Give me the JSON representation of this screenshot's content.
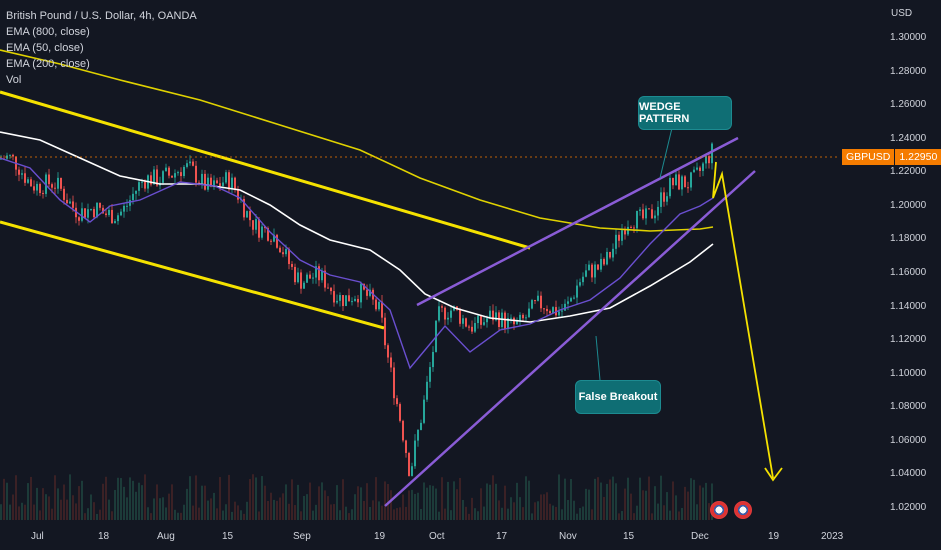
{
  "legend": {
    "title": "British Pound / U.S. Dollar, 4h, OANDA",
    "ema800": "EMA (800, close)",
    "ema50": "EMA (50, close)",
    "ema200": "EMA (200, close)",
    "vol": "Vol"
  },
  "currency": "USD",
  "price_tag": {
    "symbol": "GBPUSD",
    "value": "1.22950"
  },
  "callouts": {
    "wedge": "WEDGE PATTERN",
    "breakout": "False Breakout"
  },
  "colors": {
    "background": "#131722",
    "channel": "#f5e200",
    "wedge": "#8a5cd6",
    "ema800": "#e0d200",
    "ema200": "#ffffff",
    "ema50": "#6a4fd0",
    "up_candle": "#26a69a",
    "down_candle": "#ef5350",
    "arrow": "#f5e200",
    "price_tag": "#f57c00"
  },
  "chart_data": {
    "type": "candlestick",
    "title": "British Pound / U.S. Dollar, 4h, OANDA",
    "ylabel": "USD",
    "ylim": [
      1.005,
      1.315
    ],
    "y_ticks": [
      "1.30000",
      "1.28000",
      "1.26000",
      "1.24000",
      "1.22000",
      "1.20000",
      "1.18000",
      "1.16000",
      "1.14000",
      "1.12000",
      "1.10000",
      "1.08000",
      "1.06000",
      "1.04000",
      "1.02000"
    ],
    "x_ticks": [
      "Jul",
      "18",
      "Aug",
      "15",
      "Sep",
      "19",
      "Oct",
      "17",
      "Nov",
      "15",
      "Dec",
      "19",
      "2023"
    ],
    "last_price": 1.2295,
    "price_path": [
      {
        "x": "Jul",
        "y": 1.228
      },
      {
        "x": "18",
        "y": 1.192
      },
      {
        "x": "Aug",
        "y": 1.222
      },
      {
        "x": "15",
        "y": 1.212
      },
      {
        "x": "Sep",
        "y": 1.158
      },
      {
        "x": "19",
        "y": 1.14
      },
      {
        "x": "Sep 26",
        "y": 1.037
      },
      {
        "x": "Oct",
        "y": 1.135
      },
      {
        "x": "17",
        "y": 1.13
      },
      {
        "x": "Nov",
        "y": 1.143
      },
      {
        "x": "15",
        "y": 1.188
      },
      {
        "x": "Dec",
        "y": 1.229
      }
    ],
    "series": [
      {
        "name": "EMA (800, close)",
        "values": [
          {
            "x": "Jul",
            "y": 1.278
          },
          {
            "x": "Aug",
            "y": 1.262
          },
          {
            "x": "Sep",
            "y": 1.232
          },
          {
            "x": "Oct",
            "y": 1.208
          },
          {
            "x": "Nov",
            "y": 1.19
          },
          {
            "x": "15",
            "y": 1.184
          },
          {
            "x": "Dec",
            "y": 1.186
          }
        ]
      },
      {
        "name": "EMA (200, close)",
        "values": [
          {
            "x": "Jul",
            "y": 1.24
          },
          {
            "x": "Aug",
            "y": 1.218
          },
          {
            "x": "Sep",
            "y": 1.192
          },
          {
            "x": "Oct",
            "y": 1.142
          },
          {
            "x": "Nov",
            "y": 1.134
          },
          {
            "x": "15",
            "y": 1.146
          },
          {
            "x": "Dec",
            "y": 1.176
          }
        ]
      },
      {
        "name": "EMA (50, close)",
        "values": [
          {
            "x": "Jul",
            "y": 1.218
          },
          {
            "x": "Aug",
            "y": 1.212
          },
          {
            "x": "Sep",
            "y": 1.168
          },
          {
            "x": "Oct",
            "y": 1.1
          },
          {
            "x": "Nov",
            "y": 1.128
          },
          {
            "x": "15",
            "y": 1.162
          },
          {
            "x": "Dec",
            "y": 1.202
          }
        ]
      }
    ],
    "grid": false
  }
}
